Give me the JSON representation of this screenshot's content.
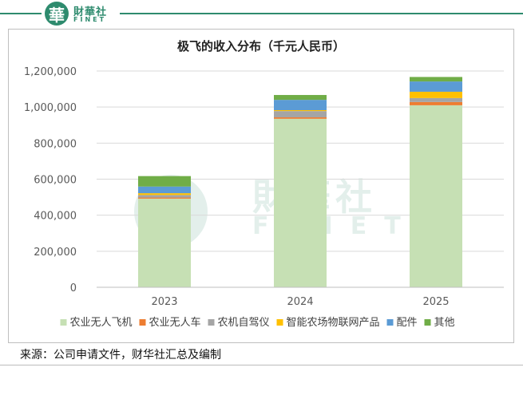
{
  "header": {
    "logo_char": "華",
    "brand_cn": "財華社",
    "brand_en": "FINET"
  },
  "watermark": {
    "logo_char": "華",
    "brand_cn": "財華社",
    "brand_en": "FINET"
  },
  "chart_data": {
    "type": "bar",
    "stacked": true,
    "title": "极飞的收入分布（千元人民币）",
    "xlabel": "",
    "ylabel": "",
    "categories": [
      "2023",
      "2024",
      "2025"
    ],
    "ylim": [
      0,
      1200000
    ],
    "yticks": [
      0,
      200000,
      400000,
      600000,
      800000,
      1000000,
      1200000
    ],
    "ytick_labels": [
      "0",
      "200,000",
      "400,000",
      "600,000",
      "800,000",
      "1,000,000",
      "1,200,000"
    ],
    "gridlines": true,
    "legend_position": "bottom",
    "series": [
      {
        "name": "农业无人飞机",
        "color": "#c6e0b4",
        "values": [
          492000,
          935000,
          1010000
        ]
      },
      {
        "name": "农业无人车",
        "color": "#ed7d31",
        "values": [
          6000,
          8000,
          18000
        ]
      },
      {
        "name": "农机自驾仪",
        "color": "#a5a5a5",
        "values": [
          14000,
          35000,
          22000
        ]
      },
      {
        "name": "智能农场物联网产品",
        "color": "#ffc000",
        "values": [
          10000,
          5000,
          35000
        ]
      },
      {
        "name": "配件",
        "color": "#5b9bd5",
        "values": [
          37000,
          57000,
          57000
        ]
      },
      {
        "name": "其他",
        "color": "#70ad47",
        "values": [
          58000,
          27000,
          25000
        ]
      }
    ]
  },
  "source": "来源：公司申请文件，财华社汇总及编制"
}
